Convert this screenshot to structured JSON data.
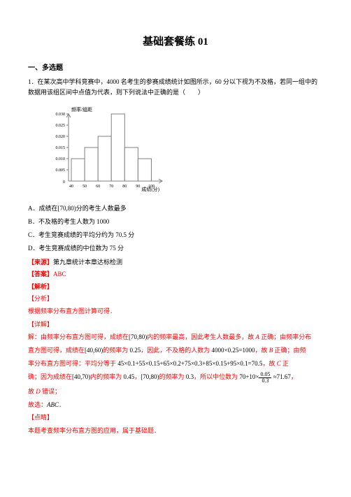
{
  "title": "基础套餐练 01",
  "section": "一、多选题",
  "problem": {
    "number": "1．",
    "text": "在某次高中学科竞赛中，4000 名考生的参赛成绩统计如图所示，60 分以下视为不及格，若同一组中的数据用该组区间中点值为代表，则下列说法中正确的是（　　）"
  },
  "chart": {
    "ylabel": "频率/组距",
    "xlabel": "成绩(分)",
    "yticks": [
      "0.030",
      "0.025",
      "0.020",
      "0.015",
      "0.010",
      "0.005",
      "0"
    ],
    "xticks": [
      "40",
      "50",
      "60",
      "70",
      "80",
      "90",
      "100"
    ],
    "bars": [
      0.01,
      0.015,
      0.02,
      0.03,
      0.015,
      0.01
    ],
    "bar_color": "#ffffff",
    "line_color": "#7f7f7f",
    "bg_color": "#ffffff"
  },
  "options": {
    "A": {
      "pre": "A．成绩在",
      "interval": "[70,80)",
      "post": "分的考生人数最多"
    },
    "B": "B．不及格的考生人数为 1000",
    "C": "C．考生竞赛成绩的平均分约为 70.5 分",
    "D": "D．考生竞赛成绩的中位数为 75 分"
  },
  "source": {
    "label": "【来源】",
    "text": "第九章统计本章达标检测"
  },
  "answer": {
    "label": "【答案】",
    "text": "ABC"
  },
  "parse_label": "【解析】",
  "analyze_label": "【分析】",
  "analyze_text": "根据频率分布直方图计算可得．",
  "detail_label": "【详解】",
  "detail": {
    "line1_pre": "解：由频率分布直方图可得，成绩在",
    "line1_int": "[70,80)",
    "line1_mid": "内的频率最高，因此考生人数最多，故",
    "line1_a": "A",
    "line1_post": "正确；由频率分布",
    "line2_pre": "直方图可得，成绩在",
    "line2_int": "[40,60)",
    "line2_mid": "的频率为",
    "line2_v": "0.25",
    "line2_txt": "，因此，不及格的人数为",
    "line2_calc": "4000×0.25=1000",
    "line2_end": "，故",
    "line2_b": "B",
    "line2_post": "正确；由频",
    "line3_pre": "率分布直方图可得：平均分等于",
    "line3_calc": "45×0.1+55×0.15+65×0.2+75×0.3+85×0.15+95×0.1=70.5",
    "line3_end": "，故",
    "line3_c": "C",
    "line3_post": "正",
    "line4_pre": "确；因为成绩在",
    "line4_int": "[40,70)",
    "line4_mid1": "内的频率为",
    "line4_v1": "0.45",
    "line4_mid2": "，",
    "line4_int2": "[70,80)",
    "line4_mid3": "的频率为",
    "line4_v2": "0.3",
    "line4_mid4": "，所以中位数为",
    "line4_expr": "70+10×",
    "line4_num": "0.05",
    "line4_den": "0.3",
    "line4_approx": "≈71.67",
    "line4_post": "，",
    "line5_pre": "故",
    "line5_d": "D",
    "line5_post": "错误；",
    "line6_pre": "故选：",
    "line6_ans": "ABC",
    "line6_post": "．"
  },
  "point_label": "【点睛】",
  "point_text": "本题考查频率分布直方图的应用，属于基础题．"
}
